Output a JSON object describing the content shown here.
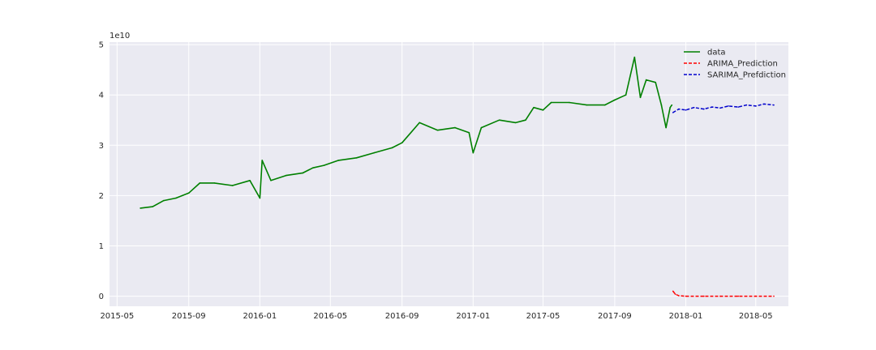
{
  "chart_data": {
    "type": "line",
    "title": "",
    "xlabel": "",
    "ylabel": "",
    "y_scale_label": "1e10",
    "xlim": [
      "2015-04-18",
      "2018-06-26"
    ],
    "ylim": [
      -0.2,
      5.05
    ],
    "x_ticks": [
      "2015-05",
      "2015-09",
      "2016-01",
      "2016-05",
      "2016-09",
      "2017-01",
      "2017-05",
      "2017-09",
      "2018-01",
      "2018-05"
    ],
    "y_ticks": [
      0,
      1,
      2,
      3,
      4,
      5
    ],
    "grid": true,
    "legend_position": "top-right",
    "background": "#eaeaf2",
    "series": [
      {
        "name": "data",
        "color": "#008000",
        "style": "solid",
        "points": [
          [
            "2015-06-10",
            1.75
          ],
          [
            "2015-07-01",
            1.78
          ],
          [
            "2015-07-20",
            1.9
          ],
          [
            "2015-08-10",
            1.95
          ],
          [
            "2015-09-01",
            2.05
          ],
          [
            "2015-09-20",
            2.25
          ],
          [
            "2015-10-15",
            2.25
          ],
          [
            "2015-11-15",
            2.2
          ],
          [
            "2015-12-15",
            2.3
          ],
          [
            "2016-01-01",
            1.95
          ],
          [
            "2016-01-05",
            2.7
          ],
          [
            "2016-01-20",
            2.3
          ],
          [
            "2016-02-15",
            2.4
          ],
          [
            "2016-03-15",
            2.45
          ],
          [
            "2016-04-01",
            2.55
          ],
          [
            "2016-04-20",
            2.6
          ],
          [
            "2016-05-15",
            2.7
          ],
          [
            "2016-06-15",
            2.75
          ],
          [
            "2016-07-15",
            2.85
          ],
          [
            "2016-08-15",
            2.95
          ],
          [
            "2016-09-01",
            3.05
          ],
          [
            "2016-10-01",
            3.45
          ],
          [
            "2016-11-01",
            3.3
          ],
          [
            "2016-12-01",
            3.35
          ],
          [
            "2016-12-25",
            3.25
          ],
          [
            "2017-01-01",
            2.85
          ],
          [
            "2017-01-15",
            3.35
          ],
          [
            "2017-02-15",
            3.5
          ],
          [
            "2017-03-15",
            3.45
          ],
          [
            "2017-04-01",
            3.5
          ],
          [
            "2017-04-15",
            3.75
          ],
          [
            "2017-05-01",
            3.7
          ],
          [
            "2017-05-15",
            3.85
          ],
          [
            "2017-06-15",
            3.85
          ],
          [
            "2017-07-15",
            3.8
          ],
          [
            "2017-08-15",
            3.8
          ],
          [
            "2017-09-01",
            3.9
          ],
          [
            "2017-09-20",
            4.0
          ],
          [
            "2017-10-05",
            4.75
          ],
          [
            "2017-10-15",
            3.95
          ],
          [
            "2017-10-25",
            4.3
          ],
          [
            "2017-11-10",
            4.25
          ],
          [
            "2017-11-20",
            3.8
          ],
          [
            "2017-11-28",
            3.35
          ],
          [
            "2017-12-05",
            3.75
          ],
          [
            "2017-12-08",
            3.8
          ]
        ]
      },
      {
        "name": "ARIMA_Prediction",
        "color": "#ff0000",
        "style": "dashed",
        "points": [
          [
            "2017-12-10",
            0.1
          ],
          [
            "2017-12-14",
            0.04
          ],
          [
            "2017-12-20",
            0.01
          ],
          [
            "2018-01-01",
            0.0
          ],
          [
            "2018-02-01",
            0.0
          ],
          [
            "2018-03-01",
            0.0
          ],
          [
            "2018-04-01",
            0.0
          ],
          [
            "2018-05-01",
            0.0
          ],
          [
            "2018-06-01",
            0.0
          ]
        ]
      },
      {
        "name": "SARIMA_Prefdiction",
        "color": "#0000cc",
        "style": "dashed",
        "points": [
          [
            "2017-12-10",
            3.65
          ],
          [
            "2017-12-20",
            3.72
          ],
          [
            "2018-01-01",
            3.7
          ],
          [
            "2018-01-15",
            3.75
          ],
          [
            "2018-02-01",
            3.72
          ],
          [
            "2018-02-15",
            3.76
          ],
          [
            "2018-03-01",
            3.74
          ],
          [
            "2018-03-15",
            3.78
          ],
          [
            "2018-04-01",
            3.76
          ],
          [
            "2018-04-15",
            3.8
          ],
          [
            "2018-05-01",
            3.78
          ],
          [
            "2018-05-15",
            3.82
          ],
          [
            "2018-06-01",
            3.8
          ]
        ]
      }
    ]
  }
}
